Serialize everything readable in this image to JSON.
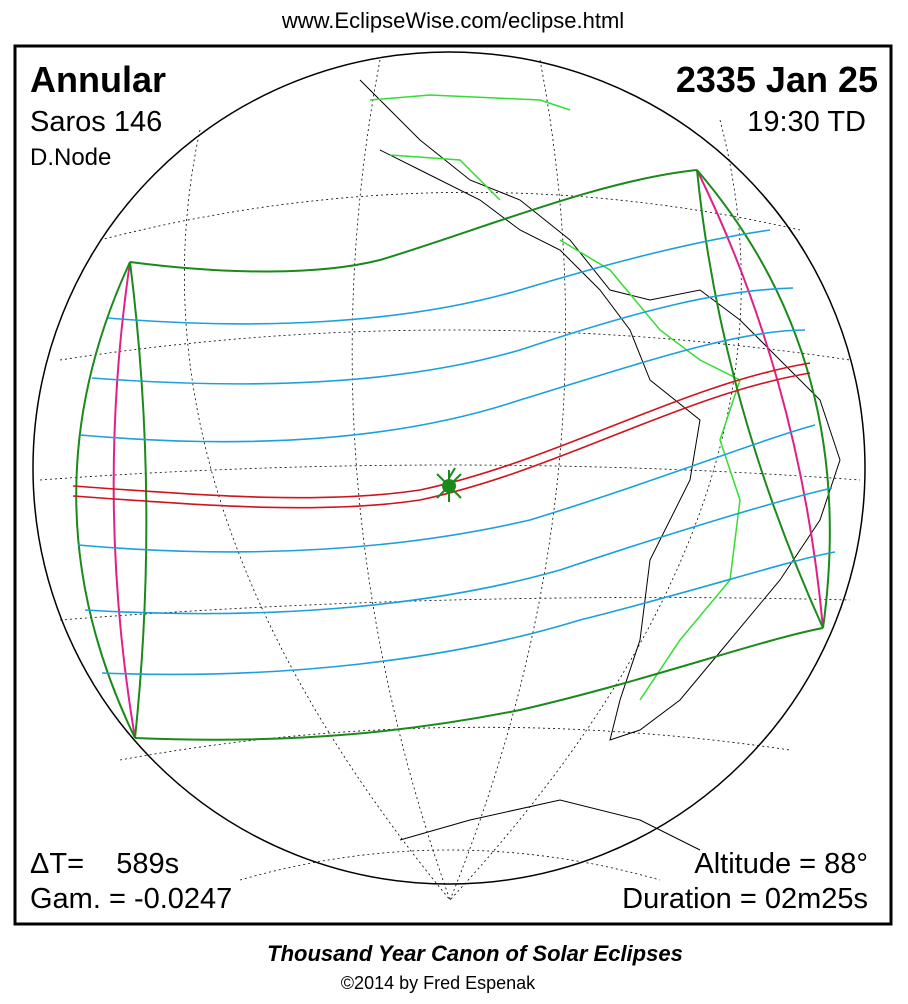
{
  "header": {
    "url": "www.EclipseWise.com/eclipse.html"
  },
  "eclipse": {
    "type": "Annular",
    "date": "2335 Jan 25",
    "saros": "Saros 146",
    "time": "19:30 TD",
    "node": "D.Node",
    "delta_t": "ΔT=    589s",
    "gamma": "Gam. = -0.0247",
    "altitude": "Altitude = 88°",
    "duration": "Duration = 02m25s"
  },
  "footer": {
    "title": "Thousand Year Canon of Solar Eclipses",
    "credit": "©2014 by Fred Espenak"
  }
}
